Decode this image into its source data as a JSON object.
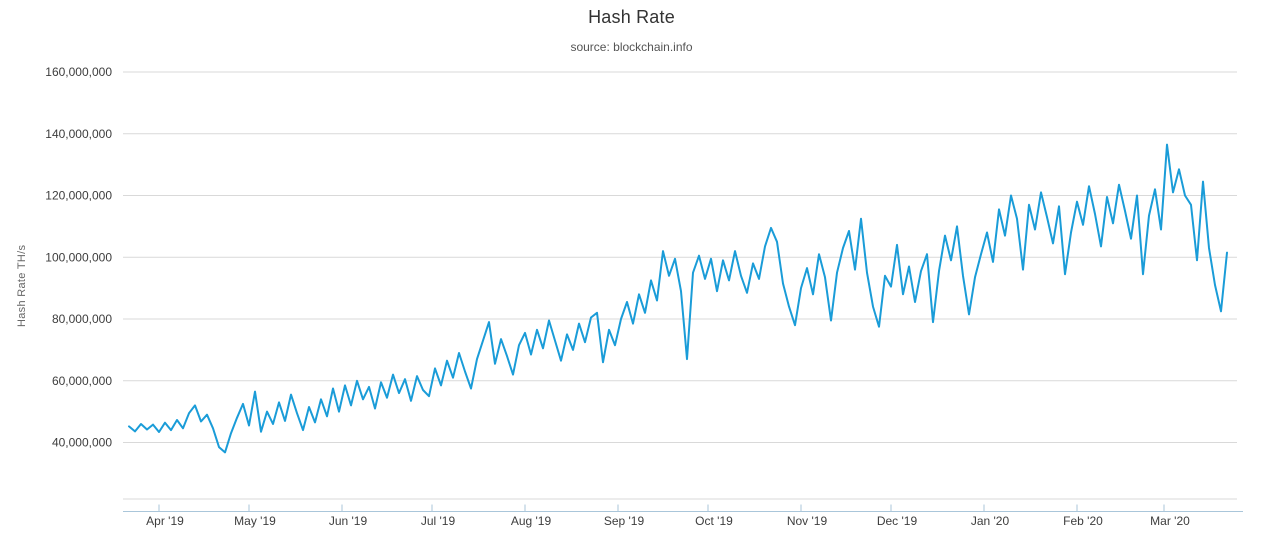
{
  "chart_data": {
    "type": "line",
    "title": "Hash Rate",
    "subtitle": "source: blockchain.info",
    "ylabel": "Hash Rate TH/s",
    "series_name": "Hash Rate",
    "unit": "million TH/s",
    "line_color": "#1a9cd8",
    "grid_color": "#d9d9d9",
    "axis_line_color": "#aac6da",
    "tick_label_color": "#3d3d3d",
    "x_start": "2019-03-22",
    "interval_days": 2,
    "x_total_days": 366,
    "legend": "none",
    "grid": "horizontal-only",
    "ylim_m": [
      21.6,
      160
    ],
    "y_ticks": [
      {
        "label": "40,000,000",
        "value_m": 40
      },
      {
        "label": "60,000,000",
        "value_m": 60
      },
      {
        "label": "80,000,000",
        "value_m": 80
      },
      {
        "label": "100,000,000",
        "value_m": 100
      },
      {
        "label": "120,000,000",
        "value_m": 120
      },
      {
        "label": "140,000,000",
        "value_m": 140
      },
      {
        "label": "160,000,000",
        "value_m": 160
      }
    ],
    "x_ticks": [
      {
        "label": "Apr '19",
        "day": 10
      },
      {
        "label": "May '19",
        "day": 40
      },
      {
        "label": "Jun '19",
        "day": 71
      },
      {
        "label": "Jul '19",
        "day": 101
      },
      {
        "label": "Aug '19",
        "day": 132
      },
      {
        "label": "Sep '19",
        "day": 163
      },
      {
        "label": "Oct '19",
        "day": 193
      },
      {
        "label": "Nov '19",
        "day": 224
      },
      {
        "label": "Dec '19",
        "day": 254
      },
      {
        "label": "Jan '20",
        "day": 285
      },
      {
        "label": "Feb '20",
        "day": 316
      },
      {
        "label": "Mar '20",
        "day": 345
      }
    ],
    "values_m": [
      45.2,
      43.6,
      46.0,
      44.2,
      45.8,
      43.4,
      46.4,
      44.0,
      47.3,
      44.6,
      49.5,
      52.0,
      46.8,
      49.0,
      44.6,
      38.5,
      36.8,
      43.0,
      48.0,
      52.5,
      45.5,
      56.5,
      43.5,
      50.0,
      46.0,
      53.0,
      47.0,
      55.5,
      49.5,
      44.0,
      51.5,
      46.5,
      54.0,
      48.5,
      57.5,
      50.0,
      58.5,
      52.0,
      60.0,
      54.0,
      58.0,
      51.0,
      59.5,
      54.5,
      62.0,
      56.0,
      60.5,
      53.5,
      61.5,
      57.0,
      55.0,
      64.0,
      58.5,
      66.5,
      61.0,
      69.0,
      63.0,
      57.5,
      67.0,
      73.0,
      79.0,
      65.5,
      73.5,
      68.0,
      62.0,
      71.5,
      75.5,
      68.5,
      76.5,
      70.5,
      79.5,
      73.0,
      66.5,
      75.0,
      70.0,
      78.5,
      72.5,
      80.5,
      82.0,
      66.0,
      76.5,
      71.5,
      80.0,
      85.5,
      78.5,
      88.0,
      82.0,
      92.5,
      86.0,
      102.0,
      94.0,
      99.5,
      89.0,
      67.0,
      95.0,
      100.5,
      93.0,
      99.5,
      89.0,
      99.0,
      92.5,
      102.0,
      94.0,
      88.5,
      98.0,
      93.0,
      103.5,
      109.5,
      105.0,
      91.5,
      84.0,
      78.0,
      90.0,
      96.5,
      88.0,
      101.0,
      93.5,
      79.5,
      95.0,
      103.0,
      108.5,
      96.0,
      112.5,
      95.0,
      84.0,
      77.5,
      94.0,
      90.5,
      104.0,
      88.0,
      97.0,
      85.5,
      95.5,
      101.0,
      79.0,
      95.5,
      107.0,
      99.0,
      110.0,
      94.0,
      81.5,
      93.5,
      101.0,
      108.0,
      98.5,
      115.5,
      107.0,
      120.0,
      112.5,
      96.0,
      117.0,
      109.0,
      121.0,
      113.0,
      104.5,
      116.5,
      94.5,
      108.0,
      118.0,
      110.5,
      123.0,
      114.0,
      103.5,
      119.5,
      111.0,
      123.5,
      115.0,
      106.0,
      120.0,
      94.5,
      113.5,
      122.0,
      109.0,
      136.5,
      121.0,
      128.5,
      120.0,
      117.0,
      99.0,
      124.5,
      103.0,
      91.0,
      82.5,
      101.5
    ]
  }
}
